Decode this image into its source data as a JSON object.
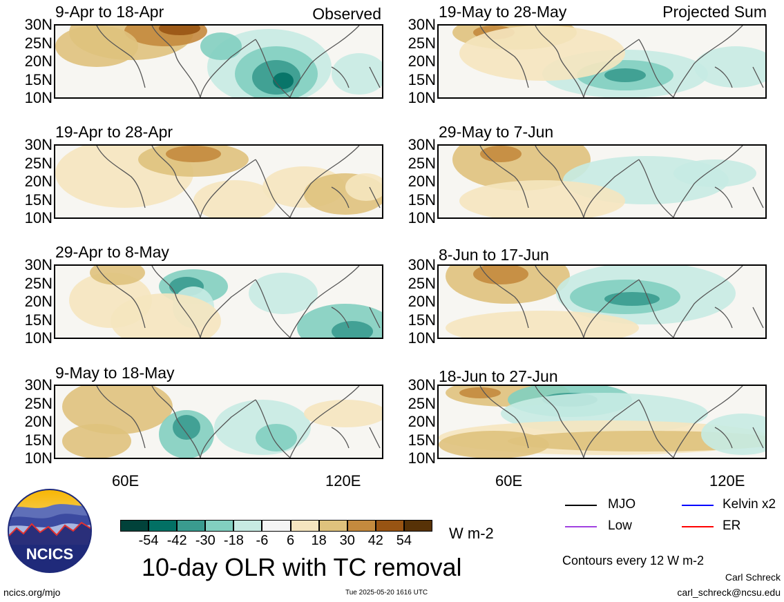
{
  "column_labels": [
    "Observed",
    "Projected Sum"
  ],
  "panels": [
    {
      "title": "9-Apr to 18-Apr"
    },
    {
      "title": "19-Apr to 28-Apr"
    },
    {
      "title": "29-Apr to 8-May"
    },
    {
      "title": "9-May to 18-May"
    },
    {
      "title": "19-May to 28-May"
    },
    {
      "title": "29-May to 7-Jun"
    },
    {
      "title": "8-Jun to 17-Jun"
    },
    {
      "title": "18-Jun to 27-Jun"
    }
  ],
  "lat_labels": [
    "30N",
    "25N",
    "20N",
    "15N",
    "10N"
  ],
  "lon_labels": [
    "60E",
    "120E"
  ],
  "colorbar": {
    "colors": [
      "#01423a",
      "#027064",
      "#3a9b8f",
      "#82cfc0",
      "#c7ebe3",
      "#f5f5f5",
      "#f5e5bf",
      "#dfc27d",
      "#c48a3e",
      "#985413",
      "#573207"
    ],
    "ticks": [
      "-54",
      "-42",
      "-30",
      "-18",
      "-6",
      "6",
      "18",
      "30",
      "42",
      "54"
    ],
    "units": "W m-2"
  },
  "main_title": "10-day OLR with TC removal",
  "legend": {
    "items": [
      {
        "label": "MJO",
        "color": "#000000"
      },
      {
        "label": "Kelvin x2",
        "color": "#0000ff"
      },
      {
        "label": "Low",
        "color": "#a040e0"
      },
      {
        "label": "ER",
        "color": "#ff0000"
      }
    ],
    "contours_note": "Contours every 12 W m-2"
  },
  "logo_text": "NCICS",
  "footer": {
    "url": "ncics.org/mjo",
    "timestamp": "Tue 2025-05-20 1616 UTC",
    "author": "Carl Schreck",
    "email": "carl_schreck@ncsu.edu"
  }
}
